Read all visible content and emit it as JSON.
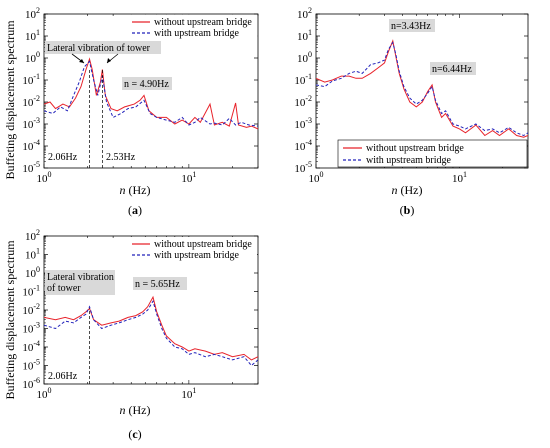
{
  "chart_data": [
    {
      "id": "a",
      "type": "line",
      "panel_label": "(a)",
      "ylabel": "Buffeting displacement spectrum",
      "xlabel_var": "n",
      "xlabel_unit": " (Hz)",
      "xscale": "log",
      "yscale": "log",
      "xlim": [
        1,
        30
      ],
      "ylim": [
        1e-05,
        100
      ],
      "y_ticks": [
        {
          "exp": "-5"
        },
        {
          "exp": "-4"
        },
        {
          "exp": "-3"
        },
        {
          "exp": "-2"
        },
        {
          "exp": "-1"
        },
        {
          "exp": "0"
        },
        {
          "exp": "1"
        },
        {
          "exp": "2"
        }
      ],
      "x_ticks": [
        {
          "value": 1,
          "base": "10",
          "exp": "0"
        },
        {
          "value": 10,
          "base": "10",
          "exp": "1"
        }
      ],
      "legend": {
        "position": "top-right",
        "entries": [
          "without upstream bridge",
          "with upstream bridge"
        ]
      },
      "annotations": {
        "box1": "Lateral vibration of tower",
        "peak_label": "n = 4.90Hz",
        "vline1": "2.06Hz",
        "vline2": "2.53Hz"
      },
      "vlines": [
        2.06,
        2.53
      ],
      "series": [
        {
          "name": "without upstream bridge",
          "color": "#e8232b",
          "style": "solid",
          "points": [
            [
              1.0,
              0.008
            ],
            [
              1.1,
              0.01
            ],
            [
              1.2,
              0.005
            ],
            [
              1.35,
              0.008
            ],
            [
              1.5,
              0.006
            ],
            [
              1.65,
              0.015
            ],
            [
              1.8,
              0.05
            ],
            [
              1.95,
              0.3
            ],
            [
              2.06,
              0.9
            ],
            [
              2.15,
              0.3
            ],
            [
              2.3,
              0.02
            ],
            [
              2.45,
              0.08
            ],
            [
              2.53,
              0.3
            ],
            [
              2.65,
              0.02
            ],
            [
              2.9,
              0.005
            ],
            [
              3.2,
              0.004
            ],
            [
              3.6,
              0.006
            ],
            [
              4.2,
              0.008
            ],
            [
              4.6,
              0.012
            ],
            [
              4.9,
              0.02
            ],
            [
              5.3,
              0.004
            ],
            [
              6,
              0.002
            ],
            [
              7,
              0.002
            ],
            [
              8,
              0.001
            ],
            [
              9,
              0.0015
            ],
            [
              10,
              0.001
            ],
            [
              11,
              0.002
            ],
            [
              12,
              0.0012
            ],
            [
              14,
              0.008
            ],
            [
              15,
              0.0009
            ],
            [
              17,
              0.0012
            ],
            [
              19,
              0.0008
            ],
            [
              21,
              0.009
            ],
            [
              22,
              0.0009
            ],
            [
              25,
              0.0007
            ],
            [
              27,
              0.0008
            ],
            [
              30,
              0.0006
            ]
          ]
        },
        {
          "name": "with upstream bridge",
          "color": "#2222bb",
          "style": "dashed",
          "points": [
            [
              1.0,
              0.004
            ],
            [
              1.15,
              0.003
            ],
            [
              1.3,
              0.006
            ],
            [
              1.45,
              0.004
            ],
            [
              1.6,
              0.02
            ],
            [
              1.75,
              0.08
            ],
            [
              1.9,
              0.4
            ],
            [
              2.06,
              0.7
            ],
            [
              2.2,
              0.1
            ],
            [
              2.35,
              0.02
            ],
            [
              2.53,
              0.15
            ],
            [
              2.7,
              0.01
            ],
            [
              3.0,
              0.002
            ],
            [
              3.4,
              0.003
            ],
            [
              3.8,
              0.005
            ],
            [
              4.3,
              0.006
            ],
            [
              4.9,
              0.012
            ],
            [
              5.4,
              0.003
            ],
            [
              6,
              0.002
            ],
            [
              7,
              0.0015
            ],
            [
              8,
              0.0012
            ],
            [
              9,
              0.002
            ],
            [
              10,
              0.0009
            ],
            [
              11,
              0.0012
            ],
            [
              12,
              0.002
            ],
            [
              14,
              0.001
            ],
            [
              15,
              0.0011
            ],
            [
              17,
              0.0009
            ],
            [
              19,
              0.0018
            ],
            [
              21,
              0.0009
            ],
            [
              23,
              0.0012
            ],
            [
              26,
              0.0009
            ],
            [
              30,
              0.0008
            ]
          ]
        }
      ]
    },
    {
      "id": "b",
      "type": "line",
      "panel_label": "(b)",
      "ylabel": "",
      "xlabel_var": "n",
      "xlabel_unit": " (Hz)",
      "xscale": "log",
      "yscale": "log",
      "xlim": [
        1,
        30
      ],
      "ylim": [
        1e-05,
        100
      ],
      "y_ticks": [
        {
          "exp": "-5"
        },
        {
          "exp": "-4"
        },
        {
          "exp": "-3"
        },
        {
          "exp": "-2"
        },
        {
          "exp": "-1"
        },
        {
          "exp": "0"
        },
        {
          "exp": "1"
        },
        {
          "exp": "2"
        }
      ],
      "x_ticks": [
        {
          "value": 1,
          "base": "10",
          "exp": "0"
        },
        {
          "value": 10,
          "base": "10",
          "exp": "1"
        }
      ],
      "legend": {
        "position": "bottom-right",
        "entries": [
          "without upstream bridge",
          "with upstream bridge"
        ]
      },
      "annotations": {
        "peak1": "n=3.43Hz",
        "peak2": "n=6.44Hz"
      },
      "vlines": [],
      "series": [
        {
          "name": "without upstream bridge",
          "color": "#e8232b",
          "style": "solid",
          "points": [
            [
              1.0,
              0.12
            ],
            [
              1.15,
              0.08
            ],
            [
              1.3,
              0.1
            ],
            [
              1.5,
              0.15
            ],
            [
              1.7,
              0.15
            ],
            [
              1.9,
              0.12
            ],
            [
              2.1,
              0.12
            ],
            [
              2.4,
              0.2
            ],
            [
              2.7,
              0.35
            ],
            [
              3.0,
              0.6
            ],
            [
              3.2,
              2.0
            ],
            [
              3.43,
              6.0
            ],
            [
              3.6,
              1.2
            ],
            [
              3.8,
              0.2
            ],
            [
              4.1,
              0.04
            ],
            [
              4.5,
              0.01
            ],
            [
              5,
              0.006
            ],
            [
              5.5,
              0.01
            ],
            [
              6.0,
              0.03
            ],
            [
              6.44,
              0.06
            ],
            [
              6.8,
              0.01
            ],
            [
              7.5,
              0.002
            ],
            [
              8,
              0.003
            ],
            [
              9,
              0.0008
            ],
            [
              10,
              0.0006
            ],
            [
              11,
              0.0004
            ],
            [
              13,
              0.0009
            ],
            [
              15,
              0.0003
            ],
            [
              17,
              0.0005
            ],
            [
              19,
              0.0003
            ],
            [
              22,
              0.0006
            ],
            [
              25,
              0.0003
            ],
            [
              28,
              0.00025
            ],
            [
              30,
              0.0003
            ]
          ]
        },
        {
          "name": "with upstream bridge",
          "color": "#2222bb",
          "style": "dashed",
          "points": [
            [
              1.0,
              0.06
            ],
            [
              1.15,
              0.05
            ],
            [
              1.3,
              0.09
            ],
            [
              1.5,
              0.12
            ],
            [
              1.7,
              0.2
            ],
            [
              1.9,
              0.25
            ],
            [
              2.1,
              0.2
            ],
            [
              2.4,
              0.5
            ],
            [
              2.7,
              0.6
            ],
            [
              3.0,
              0.8
            ],
            [
              3.2,
              2.5
            ],
            [
              3.43,
              5.0
            ],
            [
              3.6,
              1.5
            ],
            [
              3.8,
              0.25
            ],
            [
              4.1,
              0.05
            ],
            [
              4.5,
              0.015
            ],
            [
              5,
              0.008
            ],
            [
              5.5,
              0.012
            ],
            [
              6.0,
              0.025
            ],
            [
              6.44,
              0.05
            ],
            [
              6.8,
              0.012
            ],
            [
              7.5,
              0.003
            ],
            [
              8,
              0.004
            ],
            [
              9,
              0.001
            ],
            [
              10,
              0.0008
            ],
            [
              11,
              0.0006
            ],
            [
              13,
              0.001
            ],
            [
              15,
              0.0005
            ],
            [
              17,
              0.0006
            ],
            [
              19,
              0.0004
            ],
            [
              22,
              0.0007
            ],
            [
              25,
              0.0004
            ],
            [
              28,
              0.0003
            ],
            [
              30,
              0.0004
            ]
          ]
        }
      ]
    },
    {
      "id": "c",
      "type": "line",
      "panel_label": "(c)",
      "ylabel": "Buffeting displacement spectrum",
      "xlabel_var": "n",
      "xlabel_unit": " (Hz)",
      "xscale": "log",
      "yscale": "log",
      "xlim": [
        1,
        30
      ],
      "ylim": [
        1e-06,
        100
      ],
      "y_ticks": [
        {
          "exp": "-6"
        },
        {
          "exp": "-5"
        },
        {
          "exp": "-4"
        },
        {
          "exp": "-3"
        },
        {
          "exp": "-2"
        },
        {
          "exp": "-1"
        },
        {
          "exp": "0"
        },
        {
          "exp": "1"
        },
        {
          "exp": "2"
        }
      ],
      "x_ticks": [
        {
          "value": 1,
          "base": "10",
          "exp": "0"
        },
        {
          "value": 10,
          "base": "10",
          "exp": "1"
        }
      ],
      "legend": {
        "position": "top-right",
        "entries": [
          "without upstream bridge",
          "with upstream bridge"
        ]
      },
      "annotations": {
        "box1": "Lateral vibration\nof tower",
        "peak_label": "n = 5.65Hz",
        "vline1": "2.06Hz"
      },
      "vlines": [
        2.06
      ],
      "series": [
        {
          "name": "without upstream bridge",
          "color": "#e8232b",
          "style": "solid",
          "points": [
            [
              1.0,
              0.004
            ],
            [
              1.2,
              0.003
            ],
            [
              1.4,
              0.004
            ],
            [
              1.6,
              0.003
            ],
            [
              1.8,
              0.005
            ],
            [
              1.95,
              0.008
            ],
            [
              2.06,
              0.012
            ],
            [
              2.2,
              0.003
            ],
            [
              2.5,
              0.0015
            ],
            [
              2.9,
              0.002
            ],
            [
              3.3,
              0.0025
            ],
            [
              3.8,
              0.004
            ],
            [
              4.3,
              0.005
            ],
            [
              4.8,
              0.008
            ],
            [
              5.2,
              0.015
            ],
            [
              5.65,
              0.05
            ],
            [
              6.0,
              0.008
            ],
            [
              6.5,
              0.0015
            ],
            [
              7,
              0.0004
            ],
            [
              8,
              0.00015
            ],
            [
              9,
              0.0001
            ],
            [
              10,
              6e-05
            ],
            [
              11,
              8e-05
            ],
            [
              13,
              6e-05
            ],
            [
              15,
              4e-05
            ],
            [
              17,
              5e-05
            ],
            [
              20,
              3e-05
            ],
            [
              24,
              4e-05
            ],
            [
              27,
              2e-05
            ],
            [
              30,
              3e-05
            ]
          ]
        },
        {
          "name": "with upstream bridge",
          "color": "#2222bb",
          "style": "dashed",
          "points": [
            [
              1.0,
              0.0015
            ],
            [
              1.2,
              0.001
            ],
            [
              1.4,
              0.0025
            ],
            [
              1.6,
              0.002
            ],
            [
              1.8,
              0.004
            ],
            [
              1.95,
              0.006
            ],
            [
              2.06,
              0.015
            ],
            [
              2.2,
              0.003
            ],
            [
              2.5,
              0.001
            ],
            [
              2.9,
              0.0015
            ],
            [
              3.3,
              0.002
            ],
            [
              3.8,
              0.003
            ],
            [
              4.3,
              0.004
            ],
            [
              4.8,
              0.006
            ],
            [
              5.2,
              0.01
            ],
            [
              5.65,
              0.03
            ],
            [
              6.0,
              0.006
            ],
            [
              6.5,
              0.001
            ],
            [
              7,
              0.0003
            ],
            [
              8,
              0.0001
            ],
            [
              9,
              8e-05
            ],
            [
              10,
              4e-05
            ],
            [
              11,
              5e-05
            ],
            [
              13,
              3e-05
            ],
            [
              15,
              4e-05
            ],
            [
              17,
              3e-05
            ],
            [
              20,
              2e-05
            ],
            [
              24,
              3e-05
            ],
            [
              27,
              1e-05
            ],
            [
              30,
              2e-05
            ]
          ]
        }
      ]
    }
  ]
}
